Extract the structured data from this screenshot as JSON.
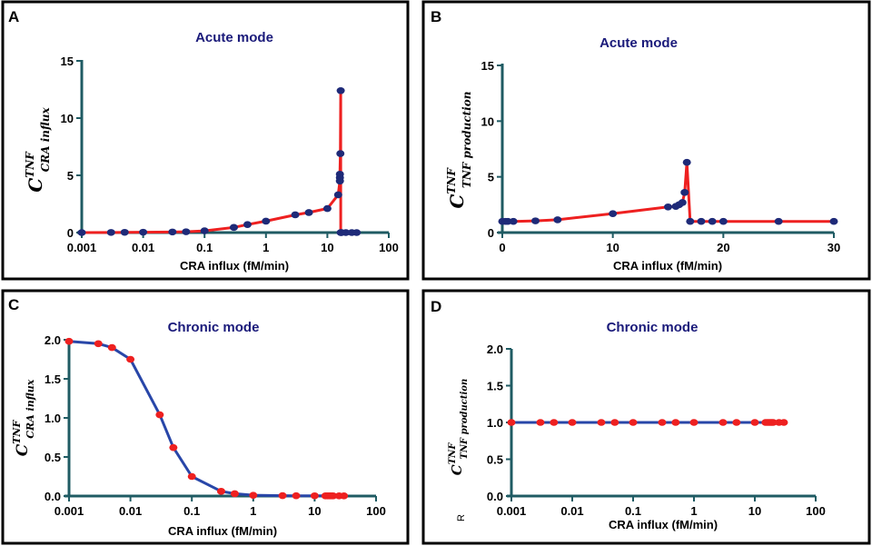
{
  "colors": {
    "title": "#1a1a7a",
    "axis": "#1f5b63",
    "red": "#ee2020",
    "blue": "#2846a8",
    "navy": "#1e2a78"
  },
  "panels": [
    {
      "letter": "A",
      "title": "Acute mode",
      "ylabel_main": "C",
      "ylabel_sup": "TNF",
      "ylabel_sub": "CRA influx",
      "xlabel": "CRA influx (fM/min)"
    },
    {
      "letter": "B",
      "title": "Acute mode",
      "ylabel_main": "C",
      "ylabel_sup": "TNF",
      "ylabel_sub": "TNF production",
      "xlabel": "CRA influx (fM/min)"
    },
    {
      "letter": "C",
      "title": "Chronic mode",
      "ylabel_main": "C",
      "ylabel_sup": "TNF",
      "ylabel_sub": "CRA influx",
      "xlabel": "CRA influx (fM/min)"
    },
    {
      "letter": "D",
      "title": "Chronic mode",
      "ylabel_main": "C",
      "ylabel_sup": "TNF",
      "ylabel_sub": "TNF production",
      "xlabel": "CRA influx (fM/min)",
      "stray_text": "R"
    }
  ],
  "chart_data": [
    {
      "panel": "A",
      "type": "line",
      "xscale": "log",
      "title": "Acute mode",
      "xlabel": "CRA influx (fM/min)",
      "ylabel": "C^TNF_CRA influx",
      "xlim": [
        0.001,
        100
      ],
      "ylim": [
        0,
        15
      ],
      "xticks": [
        "0.001",
        "0.01",
        "0.1",
        "1",
        "10",
        "100"
      ],
      "yticks": [
        "0",
        "5",
        "10",
        "15"
      ],
      "line_color": "red",
      "marker_color": "navy",
      "x": [
        0.001,
        0.003,
        0.005,
        0.01,
        0.03,
        0.05,
        0.1,
        0.3,
        0.5,
        1,
        3,
        5,
        10,
        15,
        16,
        16,
        16,
        16.3,
        16.5,
        16.5,
        16.7,
        17,
        20,
        25,
        30
      ],
      "y": [
        0,
        0.01,
        0.02,
        0.03,
        0.05,
        0.07,
        0.15,
        0.45,
        0.7,
        1.0,
        1.55,
        1.75,
        2.1,
        3.3,
        4.5,
        4.8,
        5.1,
        6.9,
        12.4,
        0,
        0,
        0,
        0,
        0,
        0
      ]
    },
    {
      "panel": "B",
      "type": "line",
      "xscale": "linear",
      "title": "Acute mode",
      "xlabel": "CRA influx (fM/min)",
      "ylabel": "C^TNF_TNF production",
      "xlim": [
        0,
        30
      ],
      "ylim": [
        0,
        15
      ],
      "xticks": [
        "0",
        "10",
        "20",
        "30"
      ],
      "yticks": [
        "0",
        "5",
        "10",
        "15"
      ],
      "line_color": "red",
      "marker_color": "navy",
      "x": [
        0,
        0.3,
        0.5,
        1,
        3,
        5,
        10,
        15,
        15.7,
        16,
        16.3,
        16.5,
        16.7,
        17,
        18,
        19,
        20,
        25,
        30
      ],
      "y": [
        1,
        1,
        1,
        1,
        1.05,
        1.15,
        1.7,
        2.3,
        2.35,
        2.5,
        2.7,
        3.6,
        6.3,
        1,
        1,
        1,
        1,
        1,
        1
      ]
    },
    {
      "panel": "C",
      "type": "line",
      "xscale": "log",
      "title": "Chronic mode",
      "xlabel": "CRA influx (fM/min)",
      "ylabel": "C^TNF_CRA influx",
      "xlim": [
        0.001,
        100
      ],
      "ylim": [
        0,
        2.0
      ],
      "xticks": [
        "0.001",
        "0.01",
        "0.1",
        "1",
        "10",
        "100"
      ],
      "yticks": [
        "0.0",
        "0.5",
        "1.0",
        "1.5",
        "2.0"
      ],
      "line_color": "blue",
      "marker_color": "red",
      "x": [
        0.001,
        0.003,
        0.005,
        0.01,
        0.03,
        0.05,
        0.1,
        0.3,
        0.5,
        1,
        3,
        5,
        10,
        15,
        16,
        17,
        18,
        19,
        20,
        25,
        30
      ],
      "y": [
        1.98,
        1.95,
        1.9,
        1.75,
        1.04,
        0.62,
        0.25,
        0.06,
        0.03,
        0.01,
        0.005,
        0.004,
        0.003,
        0.002,
        0.002,
        0.002,
        0.002,
        0.002,
        0.002,
        0.002,
        0.002
      ]
    },
    {
      "panel": "D",
      "type": "line",
      "xscale": "log",
      "title": "Chronic mode",
      "xlabel": "CRA influx (fM/min)",
      "ylabel": "C^TNF_TNF production",
      "xlim": [
        0.001,
        100
      ],
      "ylim": [
        0,
        2.0
      ],
      "xticks": [
        "0.001",
        "0.01",
        "0.1",
        "1",
        "10",
        "100"
      ],
      "yticks": [
        "0.0",
        "0.5",
        "1.0",
        "1.5",
        "2.0"
      ],
      "line_color": "blue",
      "marker_color": "red",
      "x": [
        0.001,
        0.003,
        0.005,
        0.01,
        0.03,
        0.05,
        0.1,
        0.3,
        0.5,
        1,
        3,
        5,
        10,
        15,
        16,
        17,
        18,
        19,
        20,
        25,
        30
      ],
      "y": [
        1,
        1,
        1,
        1,
        1,
        1,
        1,
        1,
        1,
        1,
        1,
        1,
        1,
        1,
        1,
        1,
        1,
        1,
        1,
        1,
        1
      ]
    }
  ]
}
